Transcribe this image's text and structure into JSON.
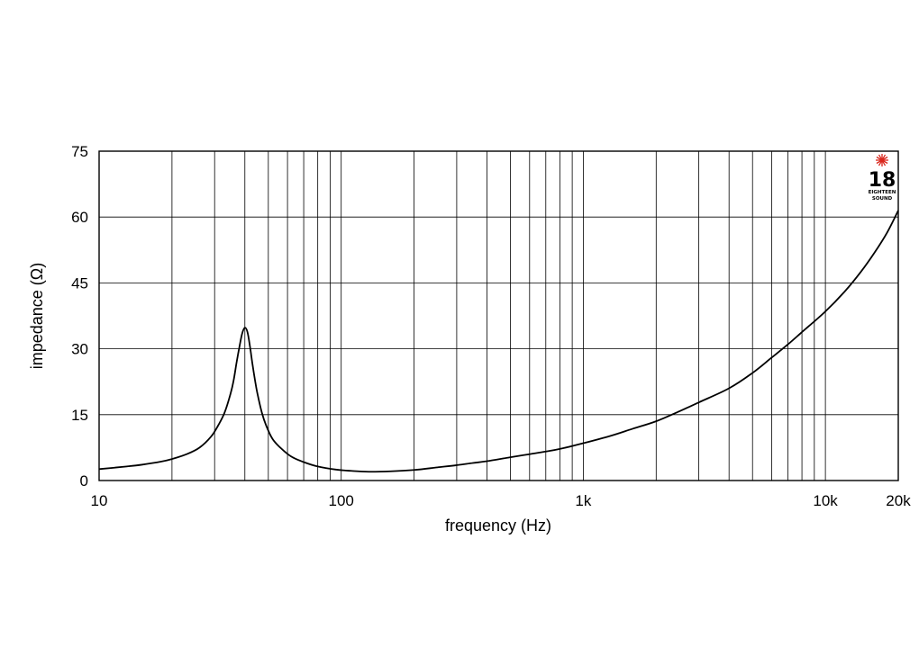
{
  "chart_data": {
    "type": "line",
    "title": "",
    "xlabel": "frequency (Hz)",
    "ylabel": "impedance (Ω)",
    "x_scale": "log",
    "xlim": [
      10,
      20000
    ],
    "ylim": [
      0,
      75
    ],
    "grid": true,
    "x_tick_labels": [
      {
        "value": 10,
        "label": "10"
      },
      {
        "value": 100,
        "label": "100"
      },
      {
        "value": 1000,
        "label": "1k"
      },
      {
        "value": 10000,
        "label": "10k"
      },
      {
        "value": 20000,
        "label": "20k"
      }
    ],
    "y_tick_labels": [
      {
        "value": 0,
        "label": "0"
      },
      {
        "value": 15,
        "label": "15"
      },
      {
        "value": 30,
        "label": "30"
      },
      {
        "value": 45,
        "label": "45"
      },
      {
        "value": 60,
        "label": "60"
      },
      {
        "value": 75,
        "label": "75"
      }
    ],
    "series": [
      {
        "x": [
          10,
          13,
          15,
          18,
          20,
          23,
          26,
          29,
          31,
          33,
          35,
          36,
          37,
          38,
          39,
          40,
          41,
          42,
          43,
          44,
          45,
          47,
          49,
          52,
          56,
          62,
          70,
          80,
          95,
          110,
          130,
          160,
          200,
          250,
          300,
          350,
          400,
          500,
          600,
          700,
          800,
          1000,
          1300,
          1600,
          2000,
          2500,
          3000,
          4000,
          5000,
          6000,
          7000,
          8000,
          10000,
          12000,
          14000,
          16000,
          18000,
          20000
        ],
        "y": [
          2.6,
          3.2,
          3.6,
          4.3,
          4.9,
          6.0,
          7.5,
          10.0,
          12.5,
          15.5,
          20.0,
          23.0,
          27.0,
          30.5,
          33.5,
          34.8,
          33.8,
          30.5,
          26.5,
          23.0,
          20.0,
          15.5,
          12.5,
          9.5,
          7.5,
          5.5,
          4.2,
          3.2,
          2.5,
          2.2,
          2.0,
          2.1,
          2.4,
          3.0,
          3.5,
          4.0,
          4.4,
          5.3,
          6.0,
          6.6,
          7.2,
          8.5,
          10.2,
          11.8,
          13.5,
          15.8,
          17.8,
          21.0,
          24.5,
          28.0,
          31.0,
          33.8,
          38.5,
          43.0,
          47.5,
          52.0,
          56.5,
          61.5
        ]
      }
    ]
  },
  "logo": {
    "number": "18",
    "line1": "EIGHTEEN",
    "line2": "SOUND",
    "accent_color": "#d9261c"
  }
}
